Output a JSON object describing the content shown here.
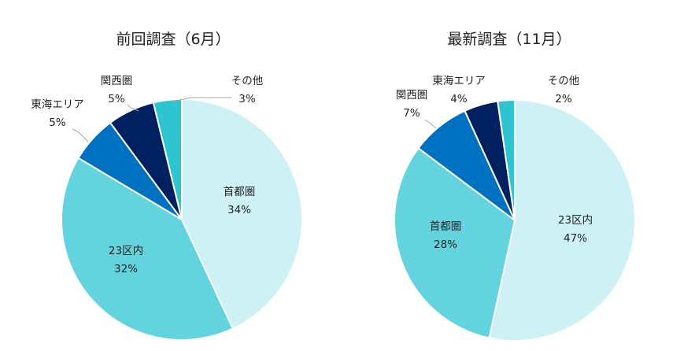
{
  "chart_data": [
    {
      "type": "pie",
      "title": "前回調査（6月）",
      "slices": [
        {
          "label": "首都圏",
          "value": 34,
          "value_text": "34%",
          "color": "#cdf1f4"
        },
        {
          "label": "23区内",
          "value": 32,
          "value_text": "32%",
          "color": "#63d3de"
        },
        {
          "label": "東海エリア",
          "value": 5,
          "value_text": "5%",
          "color": "#0070c0"
        },
        {
          "label": "関西圏",
          "value": 5,
          "value_text": "5%",
          "color": "#002060"
        },
        {
          "label": "その他",
          "value": 3,
          "value_text": "3%",
          "color": "#2ec4d0"
        }
      ]
    },
    {
      "type": "pie",
      "title": "最新調査（11月）",
      "slices": [
        {
          "label": "23区内",
          "value": 47,
          "value_text": "47%",
          "color": "#cdf1f4"
        },
        {
          "label": "首都圏",
          "value": 28,
          "value_text": "28%",
          "color": "#63d3de"
        },
        {
          "label": "関西圏",
          "value": 7,
          "value_text": "7%",
          "color": "#0070c0"
        },
        {
          "label": "東海エリア",
          "value": 4,
          "value_text": "4%",
          "color": "#002060"
        },
        {
          "label": "その他",
          "value": 2,
          "value_text": "2%",
          "color": "#2ec4d0"
        }
      ]
    }
  ]
}
